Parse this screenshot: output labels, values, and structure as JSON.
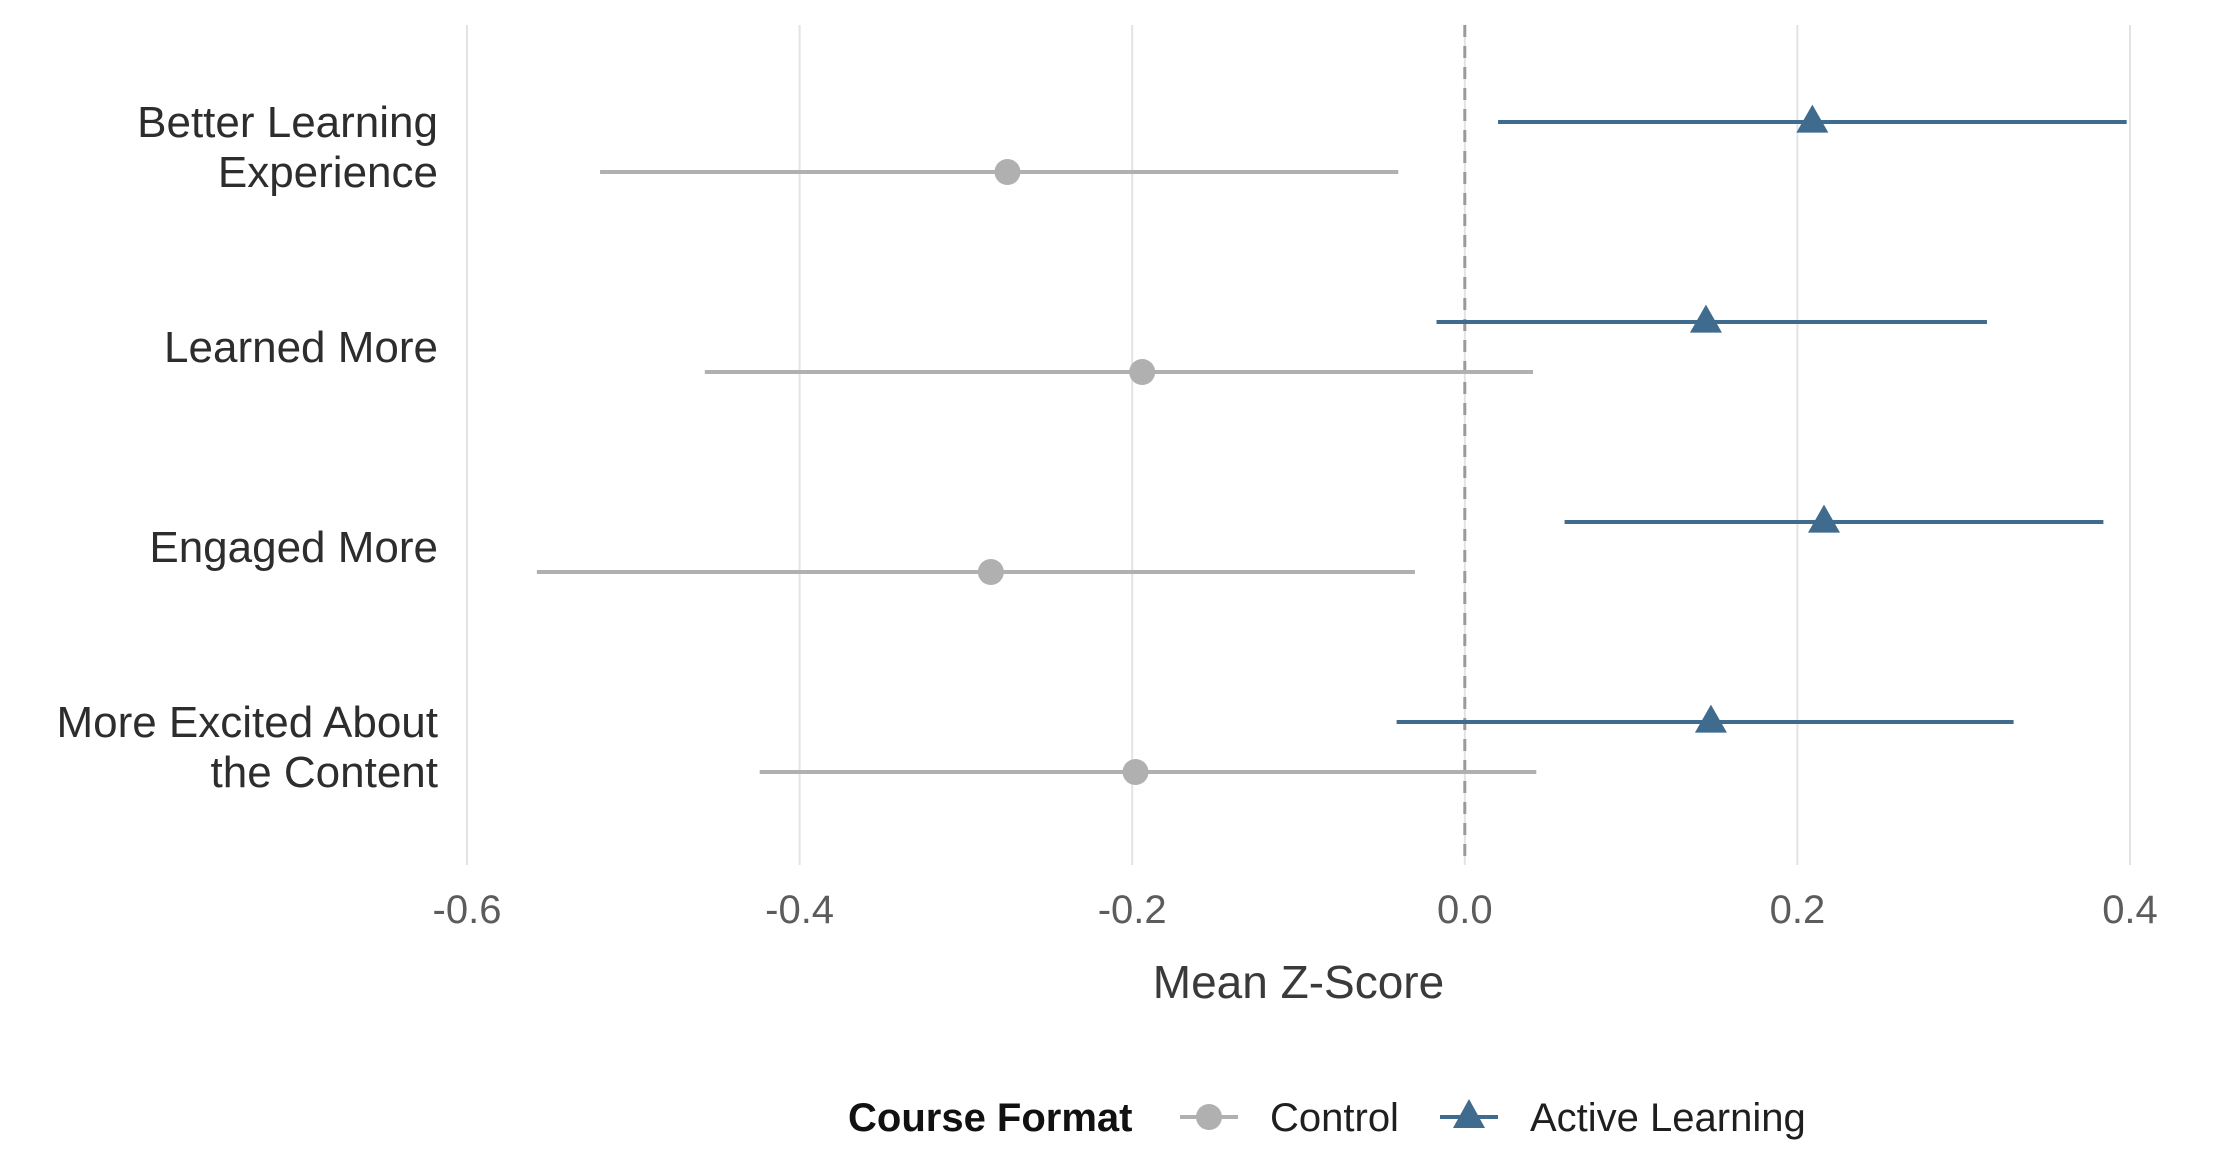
{
  "chart_data": {
    "type": "scatter",
    "orientation": "horizontal",
    "xlabel": "Mean Z-Score",
    "ylabel": "",
    "xlim": [
      -0.6,
      0.4
    ],
    "xticks": [
      -0.6,
      -0.4,
      -0.2,
      0.0,
      0.2,
      0.4
    ],
    "xtick_labels": [
      "-0.6",
      "-0.4",
      "-0.2",
      "0.0",
      "0.2",
      "0.4"
    ],
    "reference_line": {
      "x": 0,
      "style": "dashed"
    },
    "grid": "vertical",
    "categories": [
      [
        "Better Learning",
        "Experience"
      ],
      [
        "Learned More"
      ],
      [
        "Engaged More"
      ],
      [
        "More Excited About",
        "the Content"
      ]
    ],
    "series": [
      {
        "name": "Control",
        "marker": "circle",
        "color": "#b0b0b0",
        "values": [
          -0.275,
          -0.194,
          -0.285,
          -0.198
        ],
        "lower": [
          -0.52,
          -0.457,
          -0.558,
          -0.424
        ],
        "upper": [
          -0.04,
          0.041,
          -0.03,
          0.043
        ]
      },
      {
        "name": "Active Learning",
        "marker": "triangle",
        "color": "#3f6b8e",
        "values": [
          0.209,
          0.145,
          0.216,
          0.148
        ],
        "lower": [
          0.02,
          -0.017,
          0.06,
          -0.041
        ],
        "upper": [
          0.398,
          0.314,
          0.384,
          0.33
        ]
      }
    ],
    "legend": {
      "title": "Course Format",
      "position": "bottom"
    }
  }
}
